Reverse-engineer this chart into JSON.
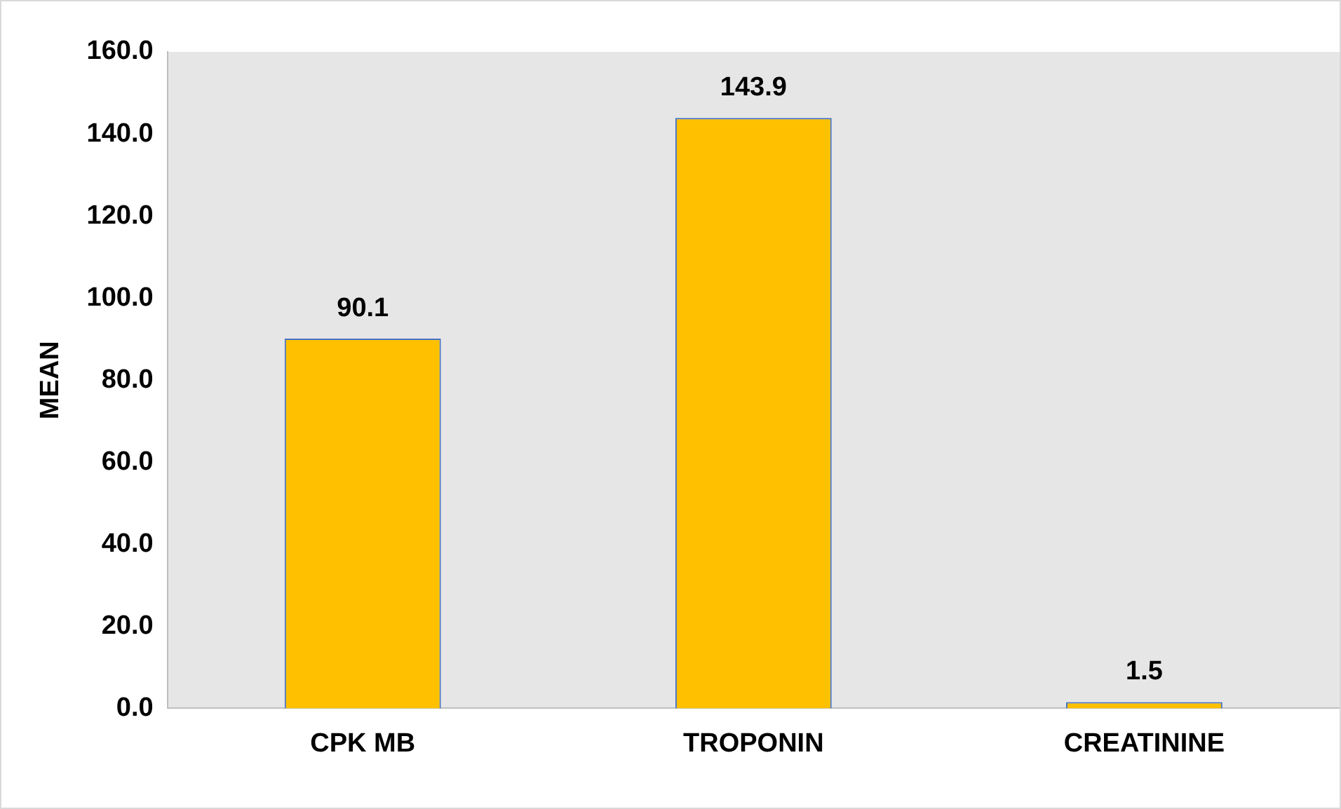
{
  "chart_data": {
    "type": "bar",
    "ylabel": "MEAN",
    "categories": [
      "CPK MB",
      "TROPONIN",
      "CREATININE"
    ],
    "values": [
      90.1,
      143.9,
      1.5
    ],
    "color": "#ffc000",
    "ylim": [
      0,
      160
    ],
    "yticks": [
      {
        "value": 0,
        "label": "0.0"
      },
      {
        "value": 20,
        "label": "20.0"
      },
      {
        "value": 40,
        "label": "40.0"
      },
      {
        "value": 60,
        "label": "60.0"
      },
      {
        "value": 80,
        "label": "80.0"
      },
      {
        "value": 100,
        "label": "100.0"
      },
      {
        "value": 120,
        "label": "120.0"
      },
      {
        "value": 140,
        "label": "140.0"
      },
      {
        "value": 160,
        "label": "160.0"
      }
    ],
    "grid": false,
    "legend": false,
    "data_labels": true
  }
}
